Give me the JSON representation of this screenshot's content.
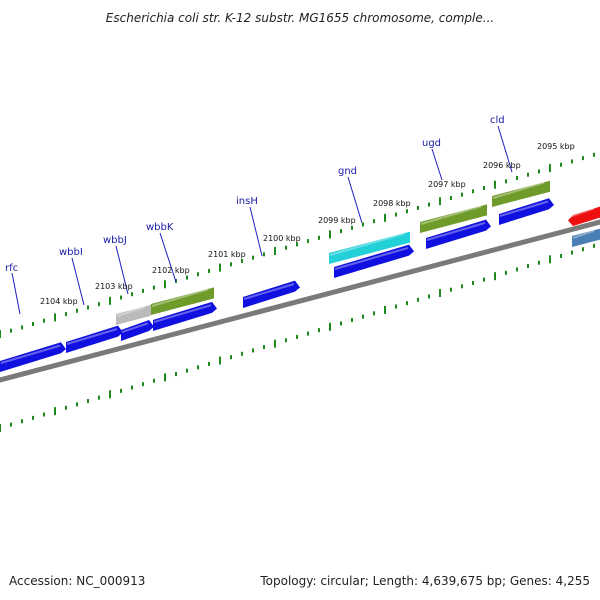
{
  "title": "Escherichia coli str. K-12 substr. MG1655 chromosome, comple...",
  "footer": {
    "accession_text": "Accession: NC_000913",
    "summary_text": "Topology: circular; Length: 4,639,675 bp; Genes: 4,255"
  },
  "colors": {
    "cds": "#1010e0",
    "green": "#6f9b2a",
    "cyan": "#22d0d8",
    "gray": "#bbbbbb",
    "red": "#ee1010",
    "steel": "#4a7fb5",
    "backbone": "#7a7a7a",
    "tick": "#1e8a1e",
    "label": "#1a1aa8"
  },
  "gene_labels": [
    "rfc",
    "wbbI",
    "wbbJ",
    "wbbK",
    "insH",
    "gnd",
    "ugd",
    "cld"
  ],
  "kbp_labels": [
    "2104 kbp",
    "2103 kbp",
    "2102 kbp",
    "2101 kbp",
    "2100 kbp",
    "2099 kbp",
    "2098 kbp",
    "2097 kbp",
    "2096 kbp",
    "2095 kbp"
  ]
}
